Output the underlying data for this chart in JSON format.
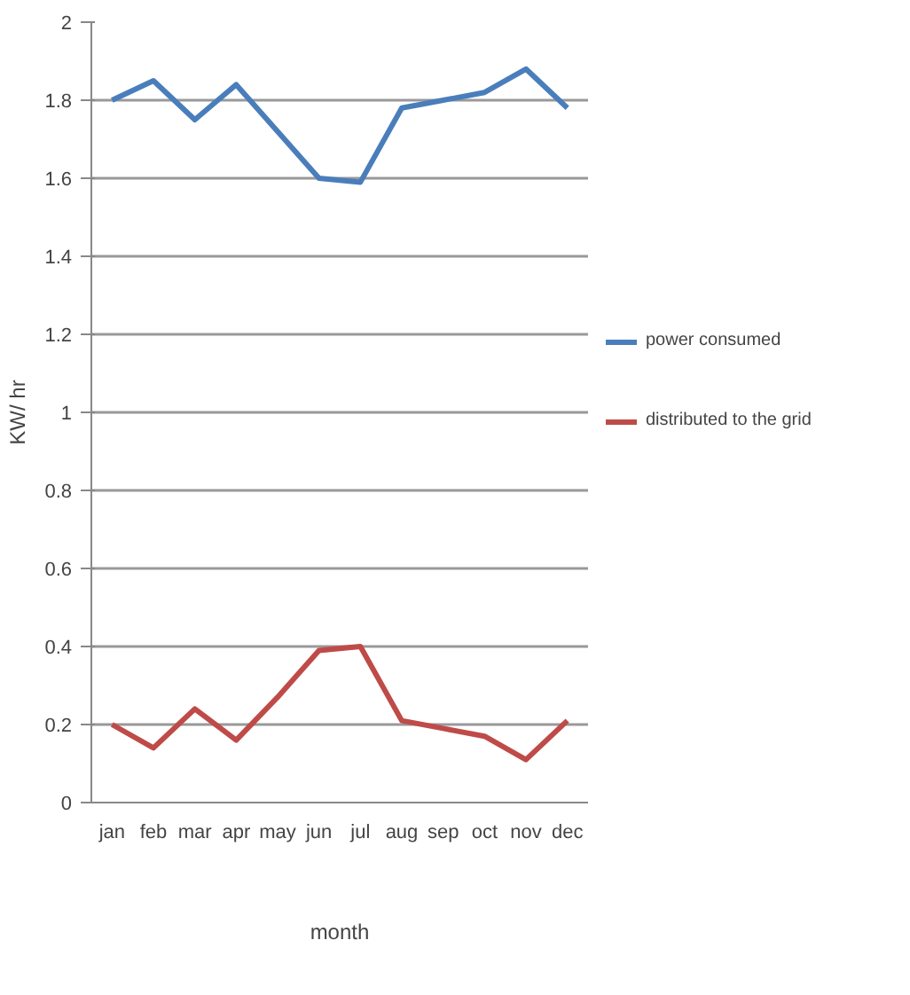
{
  "chart_data": {
    "type": "line",
    "xlabel": "month",
    "ylabel": "KW/ hr",
    "categories": [
      "jan",
      "feb",
      "mar",
      "apr",
      "may",
      "jun",
      "jul",
      "aug",
      "sep",
      "oct",
      "nov",
      "dec"
    ],
    "series": [
      {
        "name": "power consumed",
        "color": "#4a7ebb",
        "values": [
          1.8,
          1.85,
          1.75,
          1.84,
          1.72,
          1.6,
          1.59,
          1.78,
          1.8,
          1.82,
          1.88,
          1.78
        ]
      },
      {
        "name": "distributed to the grid",
        "color": "#be4b48",
        "values": [
          0.2,
          0.14,
          0.24,
          0.16,
          0.27,
          0.39,
          0.4,
          0.21,
          0.19,
          0.17,
          0.11,
          0.21
        ]
      }
    ],
    "ylim": [
      0,
      2
    ],
    "yticks": [
      0,
      {
        "value": 0.2,
        "label": "0.2"
      },
      {
        "value": 0.4,
        "label": "0.4"
      },
      {
        "value": 0.6,
        "label": "0.6"
      },
      {
        "value": 0.8,
        "label": "0.8"
      },
      1,
      {
        "value": 1.2,
        "label": "1.2"
      },
      {
        "value": 1.4,
        "label": "1.4"
      },
      {
        "value": 1.6,
        "label": "1.6"
      },
      {
        "value": 1.8,
        "label": "1.8"
      },
      2
    ],
    "grid": "y",
    "legend": "right",
    "marker": "none",
    "line_style": "solid"
  }
}
